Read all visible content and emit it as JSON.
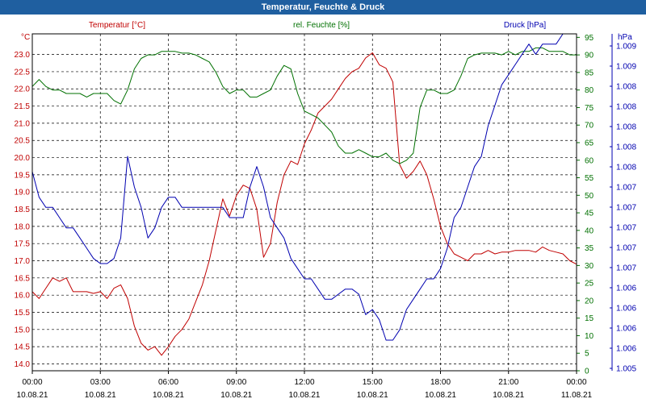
{
  "window": {
    "title": "Temperatur, Feuchte & Druck"
  },
  "colors": {
    "temp": "#c00000",
    "hum": "#007000",
    "press": "#0000b0",
    "grid": "#000000",
    "title_bar": "#1f5fa0"
  },
  "chart_data": {
    "type": "line",
    "title": "Temperatur, Feuchte & Druck",
    "grid": true,
    "x": {
      "range": [
        "10.08.21 00:00",
        "11.08.21 00:00"
      ],
      "tick_times": [
        "00:00",
        "03:00",
        "06:00",
        "09:00",
        "12:00",
        "15:00",
        "18:00",
        "21:00",
        "00:00"
      ],
      "tick_dates": [
        "10.08.21",
        "10.08.21",
        "10.08.21",
        "10.08.21",
        "10.08.21",
        "10.08.21",
        "10.08.21",
        "10.08.21",
        "11.08.21"
      ]
    },
    "axes": {
      "temp": {
        "label": "Temperatur [°C]",
        "unit": "°C",
        "range": [
          13.8,
          23.6
        ],
        "ticks": [
          "14.0",
          "14.5",
          "15.0",
          "15.5",
          "16.0",
          "16.5",
          "17.0",
          "17.5",
          "18.0",
          "18.5",
          "19.0",
          "19.5",
          "20.0",
          "20.5",
          "21.0",
          "21.5",
          "22.0",
          "22.5",
          "23.0"
        ]
      },
      "hum": {
        "label": "rel. Feuchte [%]",
        "unit": "%",
        "range": [
          0,
          96
        ],
        "ticks": [
          "0",
          "5",
          "10",
          "15",
          "20",
          "25",
          "30",
          "35",
          "40",
          "45",
          "50",
          "55",
          "60",
          "65",
          "70",
          "75",
          "80",
          "85",
          "90",
          "95"
        ]
      },
      "press": {
        "label": "Druck [hPa]",
        "unit": "hPa",
        "range": [
          1.0055,
          1.0088
        ],
        "ticks": [
          "1.005",
          "1.006",
          "1.006",
          "1.006",
          "1.006",
          "1.007",
          "1.007",
          "1.007",
          "1.007",
          "1.007",
          "1.008",
          "1.008",
          "1.008",
          "1.008",
          "1.008",
          "1.009",
          "1.009"
        ]
      }
    },
    "series": [
      {
        "name": "Temperatur [°C]",
        "axis": "temp",
        "x": [
          0,
          0.3,
          0.6,
          0.9,
          1.2,
          1.5,
          1.8,
          2.1,
          2.4,
          2.7,
          3.0,
          3.3,
          3.6,
          3.9,
          4.2,
          4.5,
          4.8,
          5.1,
          5.4,
          5.7,
          6.0,
          6.3,
          6.6,
          6.9,
          7.2,
          7.5,
          7.8,
          8.1,
          8.4,
          8.7,
          9.0,
          9.3,
          9.6,
          9.9,
          10.2,
          10.5,
          10.8,
          11.1,
          11.4,
          11.7,
          12.0,
          12.3,
          12.6,
          12.9,
          13.2,
          13.5,
          13.8,
          14.1,
          14.4,
          14.7,
          15.0,
          15.3,
          15.6,
          15.9,
          16.2,
          16.5,
          16.8,
          17.1,
          17.4,
          17.7,
          18.0,
          18.3,
          18.6,
          18.9,
          19.2,
          19.5,
          19.8,
          20.1,
          20.4,
          20.7,
          21.0,
          21.3,
          21.6,
          21.9,
          22.2,
          22.5,
          22.8,
          23.1,
          23.4,
          23.7,
          24.0
        ],
        "values": [
          16.1,
          15.9,
          16.2,
          16.5,
          16.4,
          16.5,
          16.1,
          16.1,
          16.1,
          16.05,
          16.1,
          15.9,
          16.2,
          16.3,
          15.9,
          15.1,
          14.6,
          14.4,
          14.5,
          14.25,
          14.5,
          14.8,
          15.0,
          15.3,
          15.8,
          16.3,
          17.0,
          17.9,
          18.8,
          18.3,
          18.9,
          19.2,
          19.1,
          18.5,
          17.1,
          17.5,
          18.7,
          19.5,
          19.9,
          19.8,
          20.4,
          20.8,
          21.3,
          21.5,
          21.7,
          22.0,
          22.3,
          22.5,
          22.6,
          22.9,
          23.05,
          22.7,
          22.6,
          22.2,
          19.8,
          19.4,
          19.6,
          19.9,
          19.5,
          18.8,
          18.0,
          17.5,
          17.2,
          17.1,
          17.0,
          17.2,
          17.2,
          17.3,
          17.2,
          17.25,
          17.25,
          17.3,
          17.3,
          17.3,
          17.25,
          17.4,
          17.3,
          17.25,
          17.2,
          17.0,
          16.9
        ]
      },
      {
        "name": "rel. Feuchte [%]",
        "axis": "hum",
        "x": [
          0,
          0.3,
          0.6,
          0.9,
          1.2,
          1.5,
          1.8,
          2.1,
          2.4,
          2.7,
          3.0,
          3.3,
          3.6,
          3.9,
          4.2,
          4.5,
          4.8,
          5.1,
          5.4,
          5.7,
          6.0,
          6.3,
          6.6,
          6.9,
          7.2,
          7.5,
          7.8,
          8.1,
          8.4,
          8.7,
          9.0,
          9.3,
          9.6,
          9.9,
          10.2,
          10.5,
          10.8,
          11.1,
          11.4,
          11.7,
          12.0,
          12.3,
          12.6,
          12.9,
          13.2,
          13.5,
          13.8,
          14.1,
          14.4,
          14.7,
          15.0,
          15.3,
          15.6,
          15.9,
          16.2,
          16.5,
          16.8,
          17.1,
          17.4,
          17.7,
          18.0,
          18.3,
          18.6,
          18.9,
          19.2,
          19.5,
          19.8,
          20.1,
          20.4,
          20.7,
          21.0,
          21.3,
          21.6,
          21.9,
          22.2,
          22.5,
          22.8,
          23.1,
          23.4,
          23.7,
          24.0
        ],
        "values": [
          81,
          83,
          81,
          80,
          80,
          79,
          79,
          79,
          78,
          79,
          79,
          79,
          77,
          76,
          80,
          86,
          89,
          90,
          90,
          91,
          91,
          91,
          90.5,
          90.5,
          90,
          89,
          88,
          85,
          81,
          79,
          80,
          80,
          78,
          78,
          79,
          80,
          84,
          87,
          86,
          79,
          74,
          73,
          72,
          70,
          68,
          64,
          62,
          62,
          63,
          62,
          61,
          61,
          62,
          60,
          59,
          60,
          62,
          75,
          80,
          80,
          79,
          79,
          80,
          84,
          89,
          90,
          90.5,
          90.5,
          90.5,
          90,
          91,
          90,
          91,
          91,
          92,
          92,
          91,
          91,
          91,
          90,
          90
        ]
      },
      {
        "name": "Druck [hPa]",
        "axis": "press",
        "x": [
          0,
          0.3,
          0.6,
          0.9,
          1.2,
          1.5,
          1.8,
          2.1,
          2.4,
          2.7,
          3.0,
          3.3,
          3.6,
          3.9,
          4.2,
          4.5,
          4.8,
          5.1,
          5.4,
          5.7,
          6.0,
          6.3,
          6.6,
          6.9,
          7.2,
          7.5,
          7.8,
          8.1,
          8.4,
          8.7,
          9.0,
          9.3,
          9.6,
          9.9,
          10.2,
          10.5,
          10.8,
          11.1,
          11.4,
          11.7,
          12.0,
          12.3,
          12.6,
          12.9,
          13.2,
          13.5,
          13.8,
          14.1,
          14.4,
          14.7,
          15.0,
          15.3,
          15.6,
          15.9,
          16.2,
          16.5,
          16.8,
          17.1,
          17.4,
          17.7,
          18.0,
          18.3,
          18.6,
          18.9,
          19.2,
          19.5,
          19.8,
          20.1,
          20.4,
          20.7,
          21.0,
          21.3,
          21.6,
          21.9,
          22.2,
          22.5,
          22.8,
          23.1,
          23.4,
          23.7,
          24.0
        ],
        "values": [
          1.00745,
          1.0072,
          1.0071,
          1.0071,
          1.007,
          1.0069,
          1.0069,
          1.0068,
          1.0067,
          1.0066,
          1.00655,
          1.00655,
          1.0066,
          1.0068,
          1.0076,
          1.0073,
          1.0071,
          1.0068,
          1.0069,
          1.0071,
          1.0072,
          1.0072,
          1.0071,
          1.0071,
          1.0071,
          1.0071,
          1.0071,
          1.0071,
          1.0071,
          1.007,
          1.007,
          1.007,
          1.0073,
          1.0075,
          1.0073,
          1.007,
          1.0069,
          1.0068,
          1.0066,
          1.0065,
          1.0064,
          1.0064,
          1.0063,
          1.0062,
          1.0062,
          1.00625,
          1.0063,
          1.0063,
          1.00625,
          1.00605,
          1.0061,
          1.006,
          1.0058,
          1.0058,
          1.0059,
          1.0061,
          1.0062,
          1.0063,
          1.0064,
          1.0064,
          1.0065,
          1.0067,
          1.007,
          1.0071,
          1.0073,
          1.0075,
          1.0076,
          1.0079,
          1.0081,
          1.0083,
          1.0084,
          1.0085,
          1.0086,
          1.0087,
          1.0086,
          1.0087,
          1.0087,
          1.0087,
          1.0088,
          1.0088,
          1.0088
        ]
      }
    ]
  }
}
